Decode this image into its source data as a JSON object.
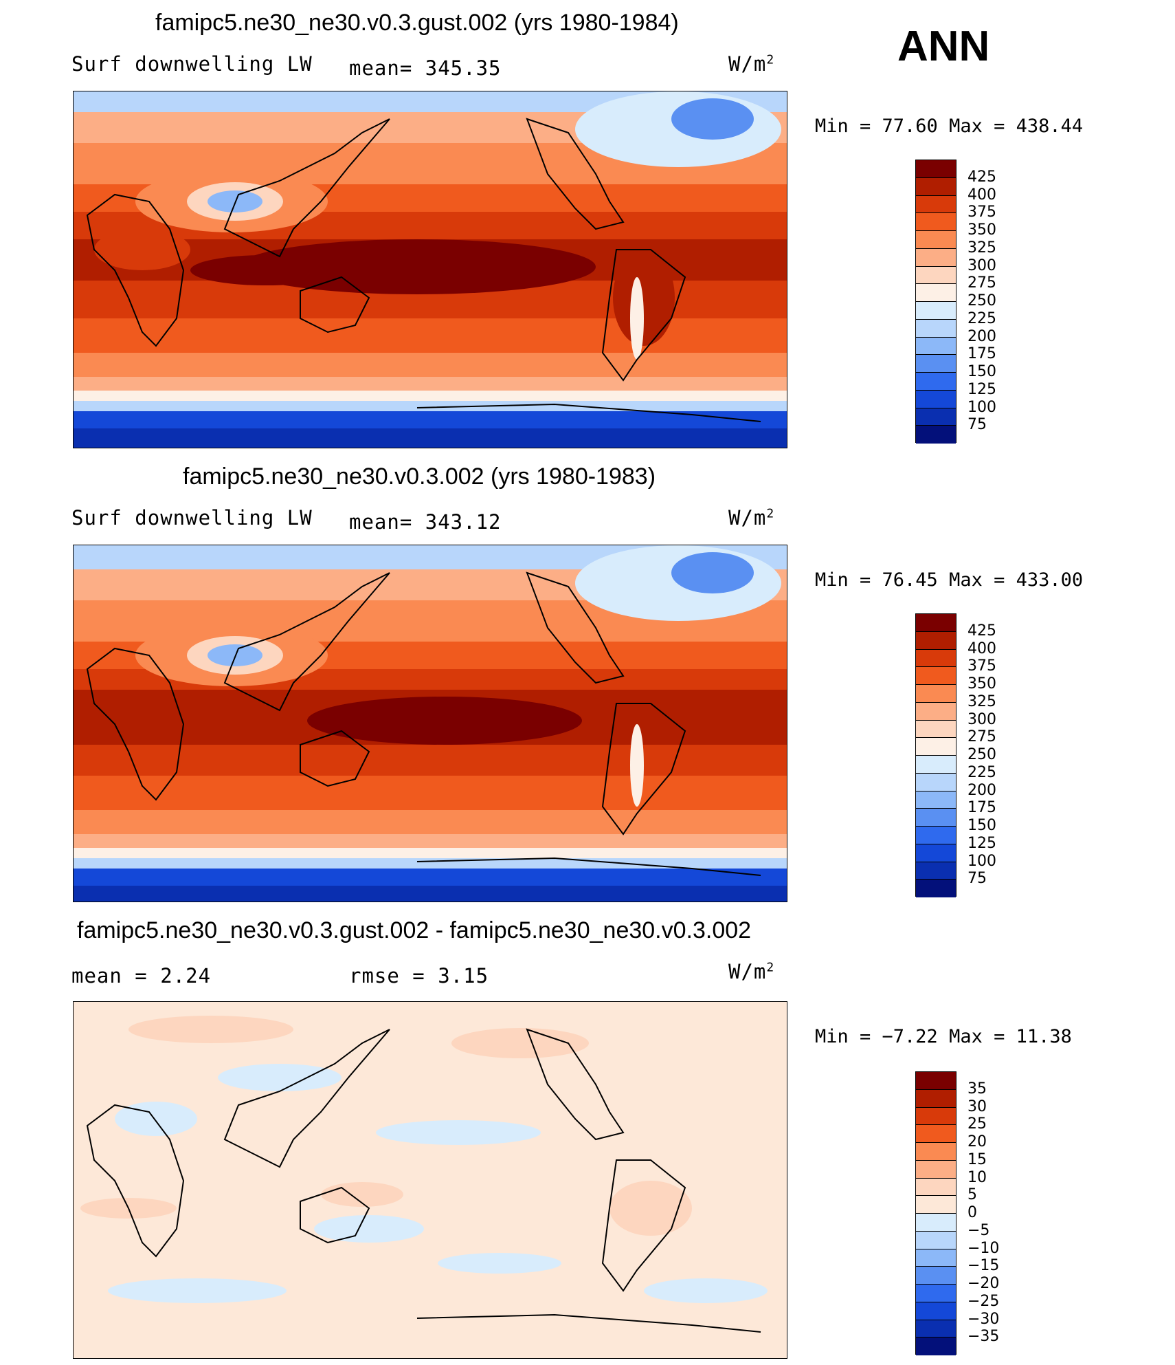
{
  "season_label": "ANN",
  "panels": [
    {
      "title": "famipc5.ne30_ne30.v0.3.gust.002 (yrs 1980-1984)",
      "left_label": "Surf  downwelling  LW",
      "center_label": "mean=  345.35",
      "units": "W/m",
      "units_sup": "2",
      "minmax": "Min  =    77.60  Max  =  438.44",
      "colorbar_labels": [
        "425",
        "400",
        "375",
        "350",
        "325",
        "300",
        "275",
        "250",
        "225",
        "200",
        "175",
        "150",
        "125",
        "100",
        "75"
      ]
    },
    {
      "title": "famipc5.ne30_ne30.v0.3.002 (yrs 1980-1983)",
      "left_label": "Surf  downwelling  LW",
      "center_label": "mean=  343.12",
      "units": "W/m",
      "units_sup": "2",
      "minmax": "Min  =    76.45  Max  =  433.00",
      "colorbar_labels": [
        "425",
        "400",
        "375",
        "350",
        "325",
        "300",
        "275",
        "250",
        "225",
        "200",
        "175",
        "150",
        "125",
        "100",
        "75"
      ]
    },
    {
      "title": "famipc5.ne30_ne30.v0.3.gust.002 - famipc5.ne30_ne30.v0.3.002",
      "left_label": "mean  =      2.24",
      "center_label": "rmse  =      3.15",
      "units": "W/m",
      "units_sup": "2",
      "minmax": "Min  =    −7.22  Max  =     11.38",
      "colorbar_labels": [
        "35",
        "30",
        "25",
        "20",
        "15",
        "10",
        "5",
        "0",
        "−5",
        "−10",
        "−15",
        "−20",
        "−25",
        "−30",
        "−35"
      ]
    }
  ],
  "colors": {
    "abs_scale": [
      "#7a0000",
      "#b01e00",
      "#d83a0a",
      "#f05a1e",
      "#fa8a52",
      "#fcae86",
      "#fdd6bf",
      "#fdf0e6",
      "#d8ecfc",
      "#b8d6fb",
      "#8cb8f8",
      "#5a90f2",
      "#2f6aee",
      "#1448d8",
      "#0a2fb0",
      "#03107a"
    ],
    "diff_scale": [
      "#7a0000",
      "#b01e00",
      "#d83a0a",
      "#f05a1e",
      "#fa8a52",
      "#fcae86",
      "#fdd6bf",
      "#fde8d8",
      "#d8ecfc",
      "#b8d6fb",
      "#8cb8f8",
      "#5a90f2",
      "#2f6aee",
      "#1448d8",
      "#0a2fb0",
      "#03107a"
    ]
  }
}
